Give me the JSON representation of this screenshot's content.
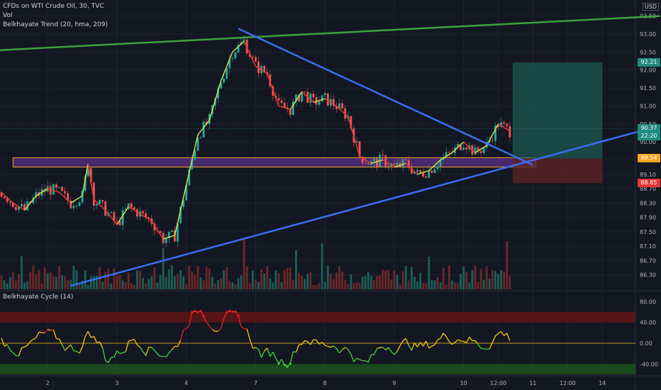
{
  "legend": {
    "symbol": "CFDs on WTI Crude Oil, 30, TVC",
    "volume": "Vol",
    "trend": "Belkhayate Trend (20, hma, 209)",
    "cycle": "Belkhayate Cycle (14)"
  },
  "currency": "USD",
  "colors": {
    "background": "#131722",
    "grid": "#1e2230",
    "trendline_blue": "#3a6df0",
    "trendline_green": "#3fa23f",
    "zone_purple": "#5b2f86",
    "zone_orange": "#f5a623",
    "target_teal": "#1b5c56",
    "stop_red": "#5c2328",
    "cycle_red": "#e52222",
    "cycle_green": "#3fd13f",
    "cycle_yellow": "#f5c518"
  },
  "chart_data": [
    {
      "type": "line",
      "name_ref": "price",
      "ylim": [
        85.9,
        93.75
      ],
      "yticks": [
        "93.50",
        "93.00",
        "92.50",
        "92.00",
        "91.50",
        "91.00",
        "90.50",
        "90.00",
        "89.50",
        "89.10",
        "88.70",
        "88.30",
        "87.90",
        "87.50",
        "87.10",
        "86.70",
        "86.30"
      ],
      "ytick_values": [
        93.5,
        93.0,
        92.5,
        92.0,
        91.5,
        91.0,
        90.5,
        90.0,
        89.5,
        89.1,
        88.7,
        88.3,
        87.9,
        87.5,
        87.1,
        86.7,
        86.3
      ],
      "xticks": [
        "2",
        "3",
        "4",
        "7",
        "8",
        "9",
        "10",
        "12:00",
        "11",
        "12:00",
        "14"
      ],
      "xtick_index": [
        16,
        40,
        64,
        88,
        112,
        136,
        160,
        172,
        184,
        196,
        208
      ],
      "n_bars": 220,
      "price_path": [
        [
          0,
          88.6
        ],
        [
          4,
          88.3
        ],
        [
          8,
          88.1
        ],
        [
          12,
          88.5
        ],
        [
          16,
          88.7
        ],
        [
          20,
          88.6
        ],
        [
          24,
          88.3
        ],
        [
          28,
          88.5
        ],
        [
          30,
          89.4
        ],
        [
          32,
          88.4
        ],
        [
          36,
          88.1
        ],
        [
          40,
          87.7
        ],
        [
          44,
          88.2
        ],
        [
          48,
          88.0
        ],
        [
          52,
          87.8
        ],
        [
          56,
          87.3
        ],
        [
          60,
          87.4
        ],
        [
          64,
          88.8
        ],
        [
          68,
          90.2
        ],
        [
          72,
          90.6
        ],
        [
          76,
          91.7
        ],
        [
          80,
          92.5
        ],
        [
          84,
          92.8
        ],
        [
          88,
          92.1
        ],
        [
          92,
          91.9
        ],
        [
          96,
          91.0
        ],
        [
          100,
          90.9
        ],
        [
          104,
          91.4
        ],
        [
          108,
          91.1
        ],
        [
          112,
          91.2
        ],
        [
          116,
          91.0
        ],
        [
          120,
          90.7
        ],
        [
          124,
          89.6
        ],
        [
          128,
          89.4
        ],
        [
          132,
          89.5
        ],
        [
          136,
          89.3
        ],
        [
          140,
          89.4
        ],
        [
          144,
          89.1
        ],
        [
          148,
          89.2
        ],
        [
          152,
          89.5
        ],
        [
          156,
          89.7
        ],
        [
          160,
          90.0
        ],
        [
          164,
          89.7
        ],
        [
          168,
          89.9
        ],
        [
          172,
          90.5
        ],
        [
          176,
          90.3
        ]
      ],
      "markers": [
        {
          "label": "92.21",
          "value": 92.21,
          "color": "#1f8b80"
        },
        {
          "label": "90.37",
          "value": 90.37,
          "color": "#1f8b80"
        },
        {
          "label": "22:20",
          "value": 90.17,
          "color": "#1f8b80"
        },
        {
          "label": "89.54",
          "value": 89.54,
          "color": "#f5a623"
        },
        {
          "label": "88.85",
          "value": 88.85,
          "color": "#e53935"
        }
      ],
      "trendlines": [
        {
          "kind": "green",
          "from": [
            -1,
            92.55
          ],
          "to": [
            228,
            93.5
          ]
        },
        {
          "kind": "blue",
          "from": [
            82,
            93.15
          ],
          "to": [
            184,
            89.36
          ]
        },
        {
          "kind": "blue",
          "from": [
            24,
            86.0
          ],
          "to": [
            228,
            90.45
          ]
        }
      ],
      "zones": [
        {
          "kind": "purple",
          "x": [
            4,
            185
          ],
          "y": [
            89.3,
            89.56
          ]
        },
        {
          "kind": "target",
          "x": [
            177,
            208
          ],
          "y": [
            89.54,
            92.21
          ]
        },
        {
          "kind": "stop",
          "x": [
            177,
            208
          ],
          "y": [
            88.85,
            89.54
          ]
        }
      ]
    },
    {
      "type": "area",
      "name_ref": "cycle",
      "ylim": [
        -60,
        90
      ],
      "yticks": [
        "80.00",
        "40.00",
        "0.00",
        "-40.00"
      ],
      "ytick_values": [
        80,
        40,
        0,
        -40
      ],
      "bands": [
        {
          "kind": "red",
          "y": [
            40,
            60
          ]
        },
        {
          "kind": "green",
          "y": [
            -60,
            -40
          ]
        }
      ],
      "zero_line": 0
    }
  ]
}
